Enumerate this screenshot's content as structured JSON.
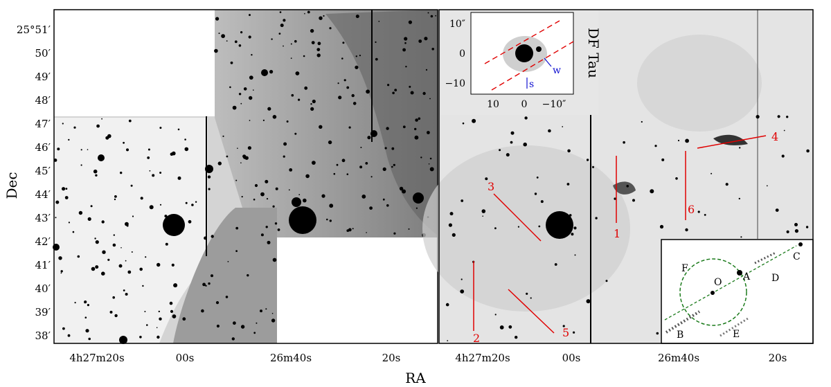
{
  "figure": {
    "x_axis_title": "RA",
    "y_axis_title": "Dec",
    "dec_tick_labels": [
      "25°51′",
      "50′",
      "49′",
      "48′",
      "47′",
      "46′",
      "45′",
      "44′",
      "43′",
      "42′",
      "41′",
      "40′",
      "39′",
      "38′"
    ],
    "ra_tick_labels": [
      "4h27m20s",
      "00s",
      "26m40s",
      "20s"
    ],
    "panels": [
      {
        "name": "left-panel",
        "description_visible": false
      },
      {
        "name": "right-panel",
        "description_visible": false
      }
    ],
    "red_line_labels": [
      "1",
      "2",
      "3",
      "4",
      "5",
      "6"
    ],
    "psf_inset": {
      "title": "DF Tau",
      "y_ticks": [
        "10″",
        "0",
        "−10"
      ],
      "x_ticks": [
        "10",
        "0",
        "−10″"
      ],
      "marker_w": "w",
      "marker_s": "s"
    },
    "schematic_inset": {
      "labels": [
        "F",
        "O",
        "A",
        "C",
        "D",
        "B",
        "E"
      ]
    },
    "colors": {
      "red_lines": "#e00000",
      "inset_markers": "#1010d0",
      "schematic_circle": "#1a7a1a"
    }
  }
}
